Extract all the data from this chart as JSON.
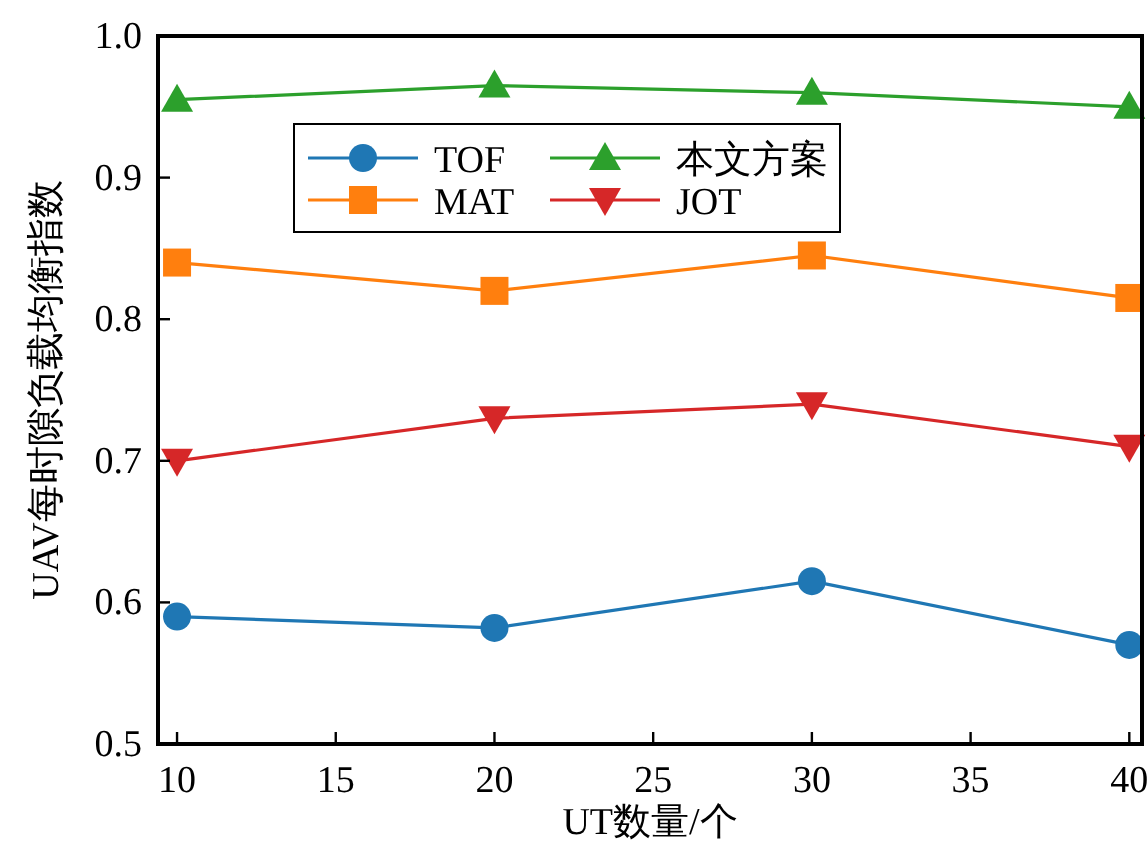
{
  "chart_data": {
    "type": "line",
    "xlabel": "UT数量/个",
    "ylabel": "UAV每时隙负载均衡指数",
    "x": [
      10,
      20,
      30,
      40
    ],
    "series": [
      {
        "name": "TOF",
        "color": "#1f77b4",
        "marker": "circle",
        "values": [
          0.59,
          0.582,
          0.615,
          0.57
        ]
      },
      {
        "name": "MAT",
        "color": "#ff7f0e",
        "marker": "square",
        "values": [
          0.84,
          0.82,
          0.845,
          0.815
        ]
      },
      {
        "name": "本文方案",
        "color": "#2ca02c",
        "marker": "triangle",
        "values": [
          0.955,
          0.965,
          0.96,
          0.95
        ]
      },
      {
        "name": "JOT",
        "color": "#d62728",
        "marker": "triangle-down",
        "values": [
          0.7,
          0.73,
          0.74,
          0.71
        ]
      }
    ],
    "xlim": [
      9.4,
      40.4
    ],
    "ylim": [
      0.5,
      1.0
    ],
    "xticks": [
      10,
      15,
      20,
      25,
      30,
      35,
      40
    ],
    "yticks": [
      0.5,
      0.6,
      0.7,
      0.8,
      0.9,
      {
        "value": 1.0,
        "label": "1.0"
      }
    ],
    "legend": "top left",
    "line_style": "solid"
  }
}
